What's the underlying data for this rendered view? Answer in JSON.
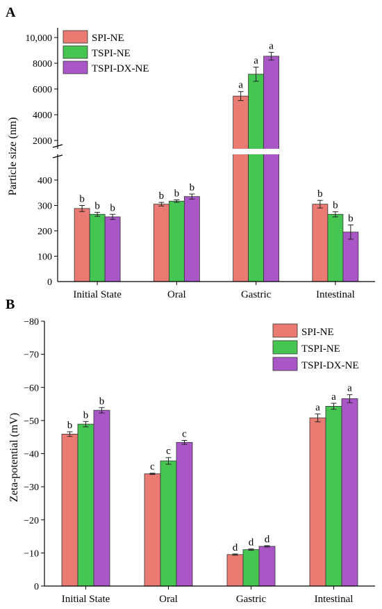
{
  "colors": {
    "SPI-NE": "#e97b72",
    "TSPI-NE": "#47c552",
    "TSPI-DX-NE": "#a957c7"
  },
  "chart_data": [
    {
      "panel_label": "A",
      "type": "bar",
      "categories": [
        "Initial State",
        "Oral",
        "Gastric",
        "Intestinal"
      ],
      "ylabel": "Particle size (nm)",
      "xlabel": "",
      "axis_break": {
        "lower_range": [
          0,
          450
        ],
        "upper_range": [
          1000,
          10000
        ]
      },
      "yticks_lower": [
        "100",
        "200",
        "300",
        "400"
      ],
      "yticks_upper": [
        "2000",
        "4000",
        "6000",
        "8000",
        "10,000"
      ],
      "legend_position": "top-left",
      "series": [
        {
          "name": "SPI-NE",
          "values": [
            288,
            305,
            5450,
            305
          ],
          "errors": [
            12,
            7,
            350,
            15
          ],
          "labels": [
            "b",
            "b",
            "a",
            "b"
          ]
        },
        {
          "name": "TSPI-NE",
          "values": [
            265,
            317,
            7150,
            265
          ],
          "errors": [
            8,
            5,
            550,
            10
          ],
          "labels": [
            "b",
            "b",
            "a",
            "b"
          ]
        },
        {
          "name": "TSPI-DX-NE",
          "values": [
            255,
            335,
            8550,
            195
          ],
          "errors": [
            10,
            10,
            300,
            28
          ],
          "labels": [
            "b",
            "b",
            "a",
            "b"
          ]
        }
      ]
    },
    {
      "panel_label": "B",
      "type": "bar",
      "categories": [
        "Initial State",
        "Oral",
        "Gastric",
        "Intestinal"
      ],
      "ylabel": "Zeta-potential (mV)",
      "xlabel": "",
      "ylim": [
        0,
        -80
      ],
      "yticks": [
        "0",
        "−10",
        "−20",
        "−30",
        "−40",
        "−50",
        "−60",
        "−70",
        "−80"
      ],
      "legend_position": "top-right",
      "series": [
        {
          "name": "SPI-NE",
          "values": [
            -45.9,
            -33.9,
            -9.5,
            -50.8
          ],
          "errors": [
            0.7,
            0.2,
            0.2,
            1.2
          ],
          "labels": [
            "b",
            "c",
            "d",
            "a"
          ]
        },
        {
          "name": "TSPI-NE",
          "values": [
            -48.9,
            -37.8,
            -11.0,
            -54.3
          ],
          "errors": [
            0.8,
            1.0,
            0.2,
            0.9
          ],
          "labels": [
            "b",
            "c",
            "d",
            "a"
          ]
        },
        {
          "name": "TSPI-DX-NE",
          "values": [
            -53.1,
            -43.4,
            -12.0,
            -56.6
          ],
          "errors": [
            0.8,
            0.6,
            0.2,
            1.2
          ],
          "labels": [
            "b",
            "c",
            "d",
            "a"
          ]
        }
      ]
    }
  ]
}
